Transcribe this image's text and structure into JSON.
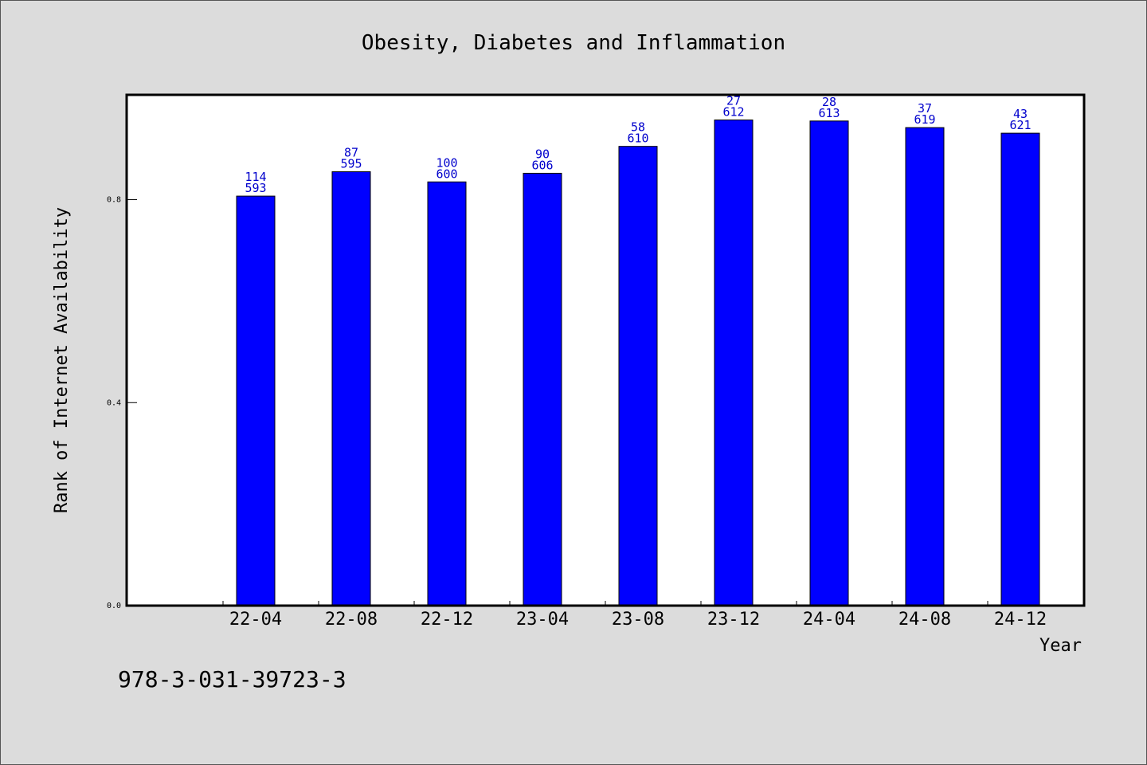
{
  "chart_data": {
    "type": "bar",
    "title": "Obesity, Diabetes and Inflammation",
    "xlabel": "Year",
    "ylabel": "Rank of Internet Availability",
    "categories": [
      "22-04",
      "22-08",
      "22-12",
      "23-04",
      "23-08",
      "23-12",
      "24-04",
      "24-08",
      "24-12"
    ],
    "values": [
      0.807,
      0.855,
      0.835,
      0.852,
      0.905,
      0.957,
      0.955,
      0.942,
      0.931
    ],
    "labels_top": [
      "114",
      "87",
      "100",
      "90",
      "58",
      "27",
      "28",
      "37",
      "43"
    ],
    "labels_bottom": [
      "593",
      "595",
      "600",
      "606",
      "610",
      "612",
      "613",
      "619",
      "621"
    ],
    "yticks": [
      "0.0",
      "0.4",
      "0.8"
    ],
    "ylim": [
      0,
      1.005
    ],
    "grid": false,
    "bar_color": "#0000ff",
    "label_color": "#0000cc"
  },
  "footer": {
    "isbn": "978-3-031-39723-3"
  }
}
